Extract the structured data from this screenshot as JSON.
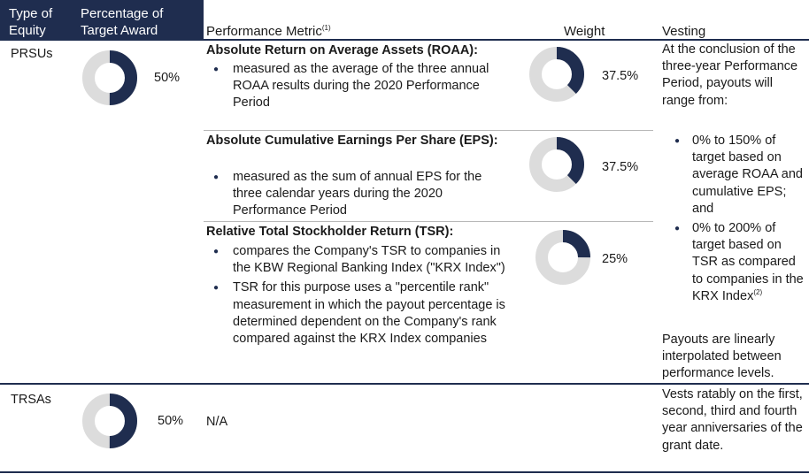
{
  "header": {
    "type_of_equity": [
      "Type of",
      "Equity"
    ],
    "percentage_of_target_award": [
      "Percentage of",
      "Target Award"
    ],
    "performance_metric": "Performance Metric",
    "performance_metric_note": "(1)",
    "weight": "Weight",
    "vesting": "Vesting"
  },
  "colors": {
    "navy": "#1f2d4f",
    "ring_gray": "#dcdcdc"
  },
  "rows": {
    "prsus": {
      "type": "PRSUs",
      "target_pct": "50%",
      "target_fraction": 0.5,
      "metrics": [
        {
          "title": "Absolute Return on Average Assets (ROAA):",
          "bullets": [
            "measured as the average of the three annual ROAA results during the 2020 Performance Period"
          ],
          "weight": "37.5%",
          "weight_fraction": 0.375
        },
        {
          "title": "Absolute Cumulative Earnings Per Share (EPS):",
          "bullets": [
            "measured as the sum of annual EPS for the three calendar years during the 2020 Performance Period"
          ],
          "weight": "37.5%",
          "weight_fraction": 0.375
        },
        {
          "title": "Relative Total Stockholder Return (TSR):",
          "bullets": [
            "compares the Company's TSR to companies in the KBW Regional Banking Index (\"KRX Index\")",
            "TSR for this purpose uses a \"percentile rank\" measurement in which the payout percentage is determined dependent on the Company's rank compared against the KRX Index companies"
          ],
          "weight": "25%",
          "weight_fraction": 0.25
        }
      ],
      "vesting": {
        "intro": "At the conclusion of the three-year Performance Period, payouts will range from:",
        "bullets": [
          "0% to 150% of target based on average ROAA and cumulative EPS; and",
          "0% to 200% of target based on TSR as compared to companies in the KRX Index"
        ],
        "bullet2_note": "(2)",
        "outro": "Payouts are linearly interpolated between performance levels."
      }
    },
    "trsas": {
      "type": "TRSAs",
      "target_pct": "50%",
      "target_fraction": 0.5,
      "metric": "N/A",
      "vesting": "Vests ratably on the first, second, third and fourth year anniversaries of the grant date."
    }
  }
}
